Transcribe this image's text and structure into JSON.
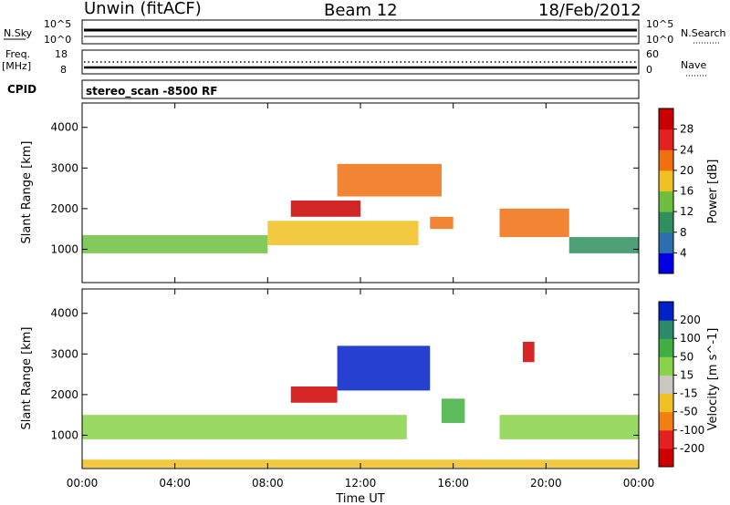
{
  "header": {
    "radar": "Unwin (fitACF)",
    "beam": "Beam 12",
    "date": "18/Feb/2012"
  },
  "noise_panel": {
    "left_label": "N.Sky",
    "right_label": "N.Search",
    "tick_top": "10^5",
    "tick_bottom": "10^0"
  },
  "freq_panel": {
    "left_label_line1": "Freq.",
    "left_label_line2": "[MHz]",
    "right_label": "Nave",
    "left_tick_top": "18",
    "left_tick_bottom": "8",
    "right_tick_top": "60",
    "right_tick_bottom": "0"
  },
  "cpid_panel": {
    "label": "CPID",
    "text": "stereo_scan -8500 RF"
  },
  "x_axis": {
    "label": "Time UT",
    "ticks": [
      "00:00",
      "04:00",
      "08:00",
      "12:00",
      "16:00",
      "20:00",
      "00:00"
    ]
  },
  "y_axis": {
    "label": "Slant Range [km]",
    "ticks": [
      "1000",
      "2000",
      "3000",
      "4000"
    ]
  },
  "power_colorbar": {
    "label": "Power [dB]",
    "ticks": [
      "4",
      "8",
      "12",
      "16",
      "20",
      "24",
      "28"
    ],
    "colors": [
      "#0000e6",
      "#2a6fb0",
      "#2f8f5f",
      "#6fbf3f",
      "#f0c020",
      "#f07010",
      "#e62020",
      "#c80000"
    ]
  },
  "velocity_colorbar": {
    "label": "Velocity [m s^-1]",
    "ticks": [
      "200",
      "100",
      "50",
      "15",
      "-15",
      "-50",
      "-100",
      "-200"
    ],
    "colors": [
      "#0020c8",
      "#2a8a6a",
      "#3fb03f",
      "#8ad24a",
      "#c8c8c0",
      "#f0c020",
      "#f08010",
      "#e62020",
      "#d00000"
    ]
  },
  "chart_data": [
    {
      "type": "heatmap",
      "title": "Power",
      "xlabel": "Time UT",
      "ylabel": "Slant Range [km]",
      "xlim": [
        "00:00",
        "24:00"
      ],
      "ylim": [
        180,
        4600
      ],
      "colorbar_label": "Power [dB]",
      "colorbar_range": [
        0,
        32
      ],
      "regions": [
        {
          "from": "00:00",
          "to": "08:00",
          "range_min": 900,
          "range_max": 1350,
          "value": 14
        },
        {
          "from": "08:00",
          "to": "14:30",
          "range_min": 1100,
          "range_max": 1700,
          "value": 18
        },
        {
          "from": "09:00",
          "to": "12:00",
          "range_min": 1800,
          "range_max": 2200,
          "value": 28
        },
        {
          "from": "11:00",
          "to": "15:30",
          "range_min": 2300,
          "range_max": 3100,
          "value": 20
        },
        {
          "from": "15:00",
          "to": "16:00",
          "range_min": 1500,
          "range_max": 1800,
          "value": 22
        },
        {
          "from": "18:00",
          "to": "21:00",
          "range_min": 1300,
          "range_max": 2000,
          "value": 22
        },
        {
          "from": "21:00",
          "to": "24:00",
          "range_min": 900,
          "range_max": 1300,
          "value": 8
        }
      ]
    },
    {
      "type": "heatmap",
      "title": "Velocity",
      "xlabel": "Time UT",
      "ylabel": "Slant Range [km]",
      "xlim": [
        "00:00",
        "24:00"
      ],
      "ylim": [
        180,
        4600
      ],
      "colorbar_label": "Velocity [m s^-1]",
      "colorbar_range": [
        -200,
        200
      ],
      "regions": [
        {
          "from": "00:00",
          "to": "14:00",
          "range_min": 900,
          "range_max": 1500,
          "value": 0
        },
        {
          "from": "09:00",
          "to": "11:00",
          "range_min": 1800,
          "range_max": 2200,
          "value": -200
        },
        {
          "from": "11:00",
          "to": "15:00",
          "range_min": 2100,
          "range_max": 3200,
          "value": 150
        },
        {
          "from": "15:30",
          "to": "16:30",
          "range_min": 1300,
          "range_max": 1900,
          "value": 40
        },
        {
          "from": "18:00",
          "to": "24:00",
          "range_min": 900,
          "range_max": 1500,
          "value": 0
        },
        {
          "from": "19:00",
          "to": "19:30",
          "range_min": 2800,
          "range_max": 3300,
          "value": -200
        },
        {
          "from": "00:00",
          "to": "24:00",
          "range_min": 200,
          "range_max": 400,
          "value": -50
        }
      ]
    }
  ]
}
